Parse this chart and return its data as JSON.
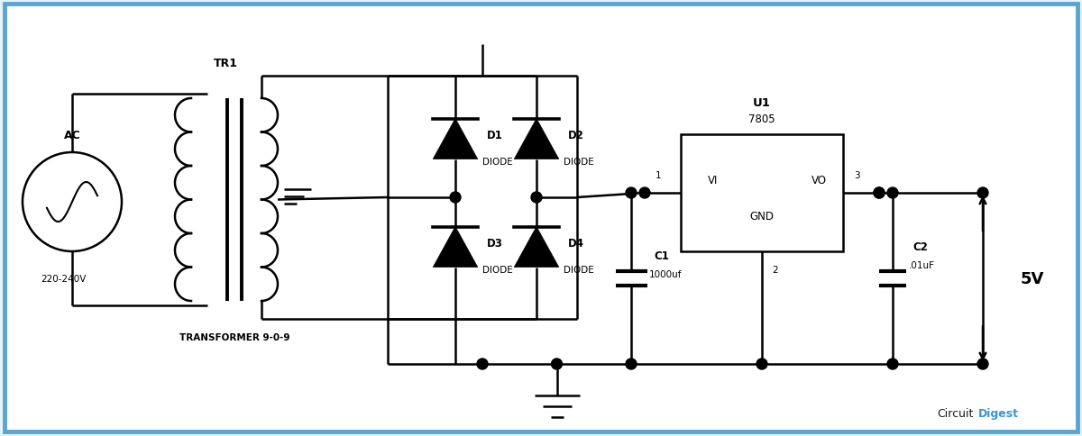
{
  "bg_color": "#e8f4fc",
  "border_color": "#5aa5d0",
  "line_color": "#000000",
  "line_width": 1.8,
  "fig_width": 12.0,
  "fig_height": 4.85,
  "circuit_bg": "#ffffff",
  "text_color": "#000000",
  "brand_color_circuit": "#1a1a1a",
  "brand_color_digest": "#3399cc",
  "xlim": [
    0,
    120
  ],
  "ylim": [
    0,
    48.5
  ]
}
